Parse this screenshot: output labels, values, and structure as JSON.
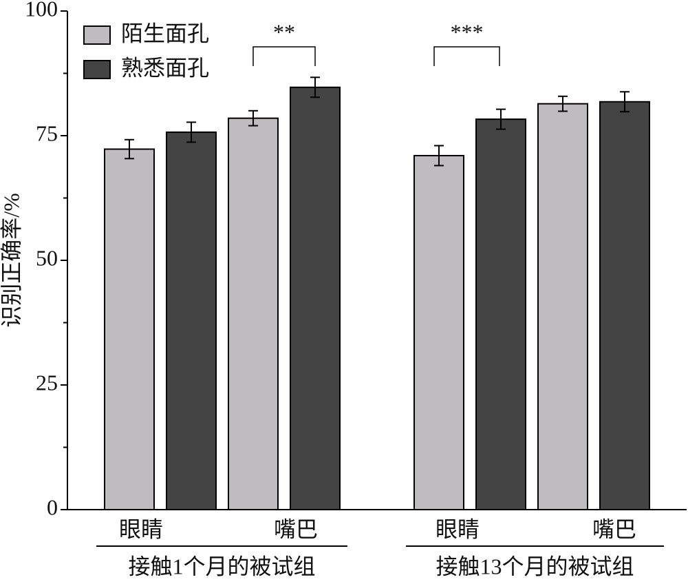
{
  "chart_data": {
    "type": "bar",
    "y_label": "识别正确率/%",
    "categories": [
      "眼睛",
      "嘴巴",
      "眼睛",
      "嘴巴"
    ],
    "group_labels": [
      "接触1个月的被试组",
      "接触13个月的被试组"
    ],
    "series": [
      {
        "name": "陌生面孔",
        "color": "#c0bbbf",
        "values": [
          72.3,
          78.5,
          71.0,
          81.4
        ],
        "errors": [
          1.9,
          1.5,
          2.0,
          1.5
        ]
      },
      {
        "name": "熟悉面孔",
        "color": "#444444",
        "values": [
          75.7,
          84.7,
          78.3,
          81.8
        ],
        "errors": [
          2.0,
          2.0,
          2.0,
          2.0
        ]
      }
    ],
    "annotations": [
      "**",
      "***"
    ],
    "ylim": [
      0,
      100
    ],
    "yticks": [
      0,
      25,
      50,
      75,
      100
    ],
    "yminorticks": [
      12.5,
      37.5,
      62.5,
      87.5
    ],
    "legend": "upper-left"
  }
}
